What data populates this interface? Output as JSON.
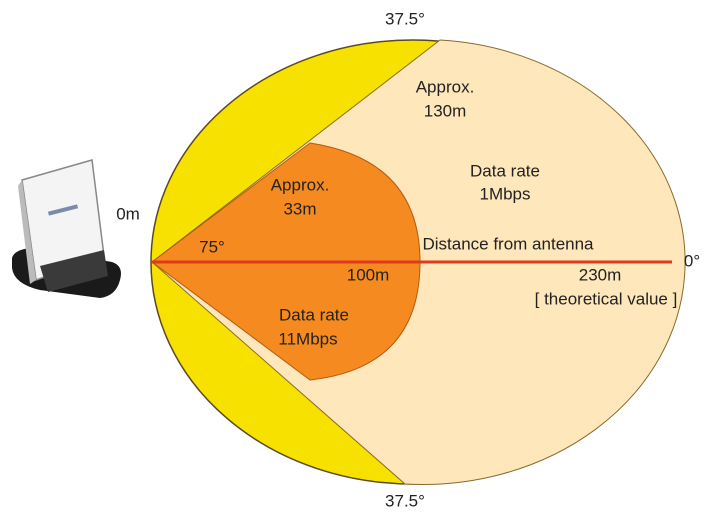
{
  "angles": {
    "top": "37.5°",
    "bottom": "37.5°",
    "spread": "75°",
    "axis": "0°"
  },
  "outer_zone": {
    "distance": [
      "Approx.",
      "130m"
    ],
    "rate": [
      "Data rate",
      "1Mbps"
    ]
  },
  "inner_zone": {
    "distance": [
      "Approx.",
      "33m"
    ],
    "rate": [
      "Data rate",
      "11Mbps"
    ]
  },
  "axis": {
    "origin": "0m",
    "title": "Distance from antenna",
    "mid": "100m",
    "end": "230m",
    "note": "[ theoretical value ]"
  }
}
